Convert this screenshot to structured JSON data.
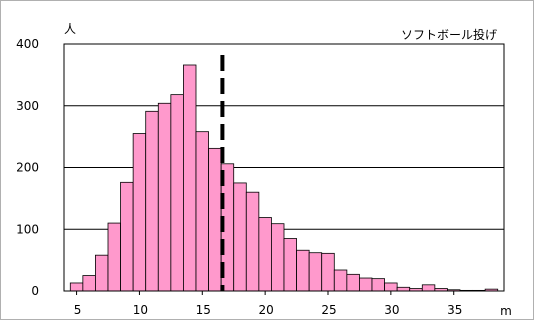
{
  "chart_data": {
    "type": "bar",
    "title": "ソフトボール投げ",
    "ylabel": "人",
    "xlabel": "m",
    "ylim": [
      0,
      400
    ],
    "y_ticks": [
      "0",
      "100",
      "200",
      "300",
      "400"
    ],
    "xlim": [
      4,
      39
    ],
    "x_ticks": [
      "5",
      "10",
      "15",
      "20",
      "25",
      "30",
      "35"
    ],
    "bar_width": 1,
    "x": [
      5,
      6,
      7,
      8,
      9,
      10,
      11,
      12,
      13,
      14,
      15,
      16,
      17,
      18,
      19,
      20,
      21,
      22,
      23,
      24,
      25,
      26,
      27,
      28,
      29,
      30,
      31,
      32,
      33,
      34,
      35,
      36,
      37,
      38
    ],
    "values": [
      13,
      25,
      58,
      110,
      176,
      255,
      291,
      304,
      318,
      366,
      258,
      231,
      206,
      175,
      160,
      119,
      109,
      85,
      66,
      62,
      61,
      34,
      27,
      21,
      20,
      13,
      6,
      4,
      10,
      4,
      2,
      1,
      1,
      3
    ],
    "mean_line": 16.6,
    "grid": true,
    "colors": {
      "bar_fill": "#ff99cc",
      "bar_stroke": "#000000",
      "grid": "#000000",
      "mean_line": "#000000"
    }
  }
}
